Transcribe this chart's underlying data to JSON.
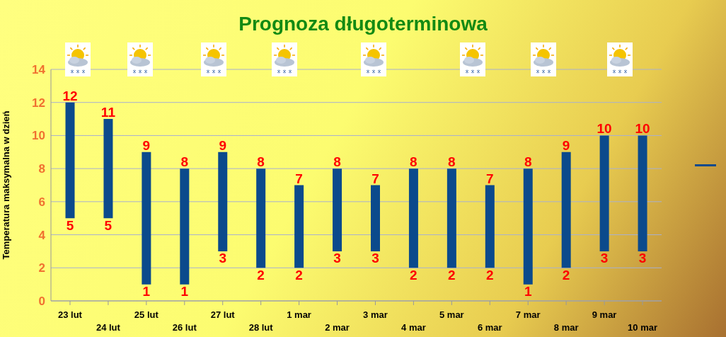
{
  "chart_data": {
    "type": "bar",
    "title": "Prognoza długoterminowa",
    "ylabel": "Temperatura maksymalna w dzień",
    "categories": [
      "23 lut",
      "24 lut",
      "25 lut",
      "26 lut",
      "27 lut",
      "28 lut",
      "1 mar",
      "2 mar",
      "3 mar",
      "4 mar",
      "5 mar",
      "6 mar",
      "7 mar",
      "8 mar",
      "9 mar",
      "10 mar"
    ],
    "base": [
      5,
      5,
      1,
      1,
      3,
      2,
      2,
      3,
      3,
      2,
      2,
      2,
      1,
      2,
      3,
      3
    ],
    "values": [
      7,
      6,
      8,
      7,
      6,
      6,
      5,
      5,
      4,
      6,
      6,
      5,
      7,
      7,
      7,
      7
    ],
    "color": "#0b4a8c",
    "ylim": [
      0,
      14
    ],
    "yticks": [
      0,
      2,
      4,
      6,
      8,
      10,
      12,
      14
    ],
    "grid": "y",
    "annotations": [
      {
        "text": "12",
        "x": "23 lut",
        "y": 12
      },
      {
        "text": "5",
        "x": "23 lut",
        "y": 5
      },
      {
        "text": "11",
        "x": "24 lut",
        "y": 11
      },
      {
        "text": "5",
        "x": "24 lut",
        "y": 5
      },
      {
        "text": "9",
        "x": "25 lut",
        "y": 9
      },
      {
        "text": "1",
        "x": "25 lut",
        "y": 1
      },
      {
        "text": "8",
        "x": "26 lut",
        "y": 8
      },
      {
        "text": "1",
        "x": "26 lut",
        "y": 1
      },
      {
        "text": "9",
        "x": "27 lut",
        "y": 9
      },
      {
        "text": "3",
        "x": "27 lut",
        "y": 3
      },
      {
        "text": "8",
        "x": "28 lut",
        "y": 8
      },
      {
        "text": "2",
        "x": "28 lut",
        "y": 2
      },
      {
        "text": "7",
        "x": "1 mar",
        "y": 7
      },
      {
        "text": "2",
        "x": "1 mar",
        "y": 2
      },
      {
        "text": "8",
        "x": "2 mar",
        "y": 8
      },
      {
        "text": "3",
        "x": "2 mar",
        "y": 3
      },
      {
        "text": "7",
        "x": "3 mar",
        "y": 7
      },
      {
        "text": "3",
        "x": "3 mar",
        "y": 3
      },
      {
        "text": "8",
        "x": "4 mar",
        "y": 8
      },
      {
        "text": "2",
        "x": "4 mar",
        "y": 2
      },
      {
        "text": "8",
        "x": "5 mar",
        "y": 8
      },
      {
        "text": "2",
        "x": "5 mar",
        "y": 2
      },
      {
        "text": "7",
        "x": "6 mar",
        "y": 7
      },
      {
        "text": "2",
        "x": "6 mar",
        "y": 2
      },
      {
        "text": "8",
        "x": "7 mar",
        "y": 8
      },
      {
        "text": "1",
        "x": "7 mar",
        "y": 1
      },
      {
        "text": "9",
        "x": "8 mar",
        "y": 9
      },
      {
        "text": "2",
        "x": "8 mar",
        "y": 2
      },
      {
        "text": "10",
        "x": "9 mar",
        "y": 10
      },
      {
        "text": "3",
        "x": "9 mar",
        "y": 3
      },
      {
        "text": "10",
        "x": "10 mar",
        "y": 10
      },
      {
        "text": "3",
        "x": "10 mar",
        "y": 3
      }
    ]
  }
}
